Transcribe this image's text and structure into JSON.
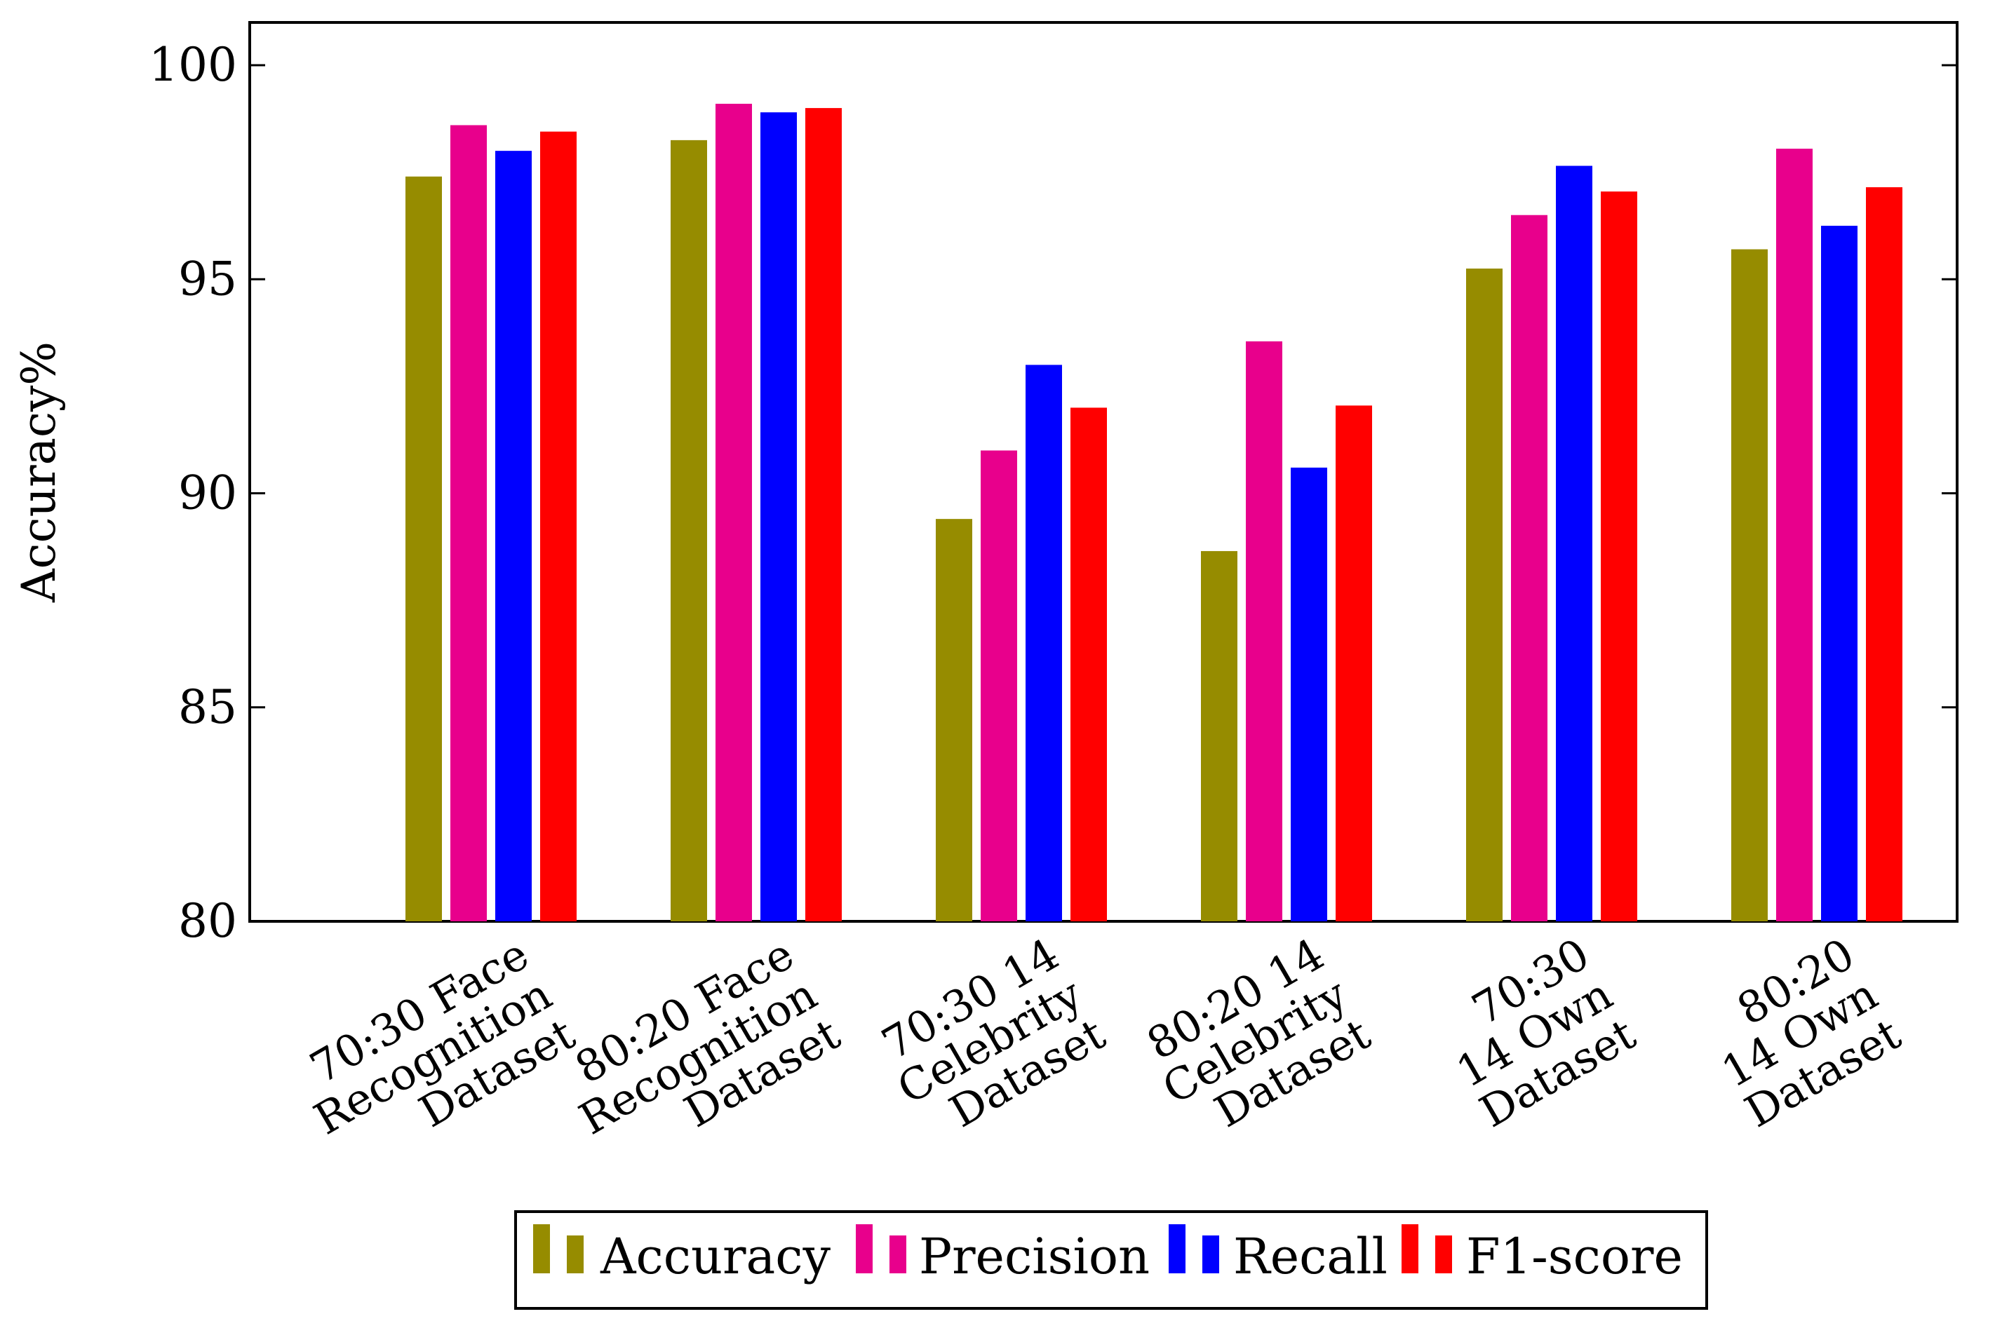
{
  "chart_data": {
    "type": "bar",
    "title": "",
    "xlabel": "",
    "ylabel": "Accuracy%",
    "ylim": [
      80,
      101
    ],
    "yticks": [
      80,
      85,
      90,
      95,
      100
    ],
    "categories": [
      [
        "70:30 Face",
        "Recognition",
        "Dataset"
      ],
      [
        "80:20 Face",
        "Recognition",
        "Dataset"
      ],
      [
        "70:30 14",
        "Celebrity",
        "Dataset"
      ],
      [
        "80:20 14",
        "Celebrity",
        "Dataset"
      ],
      [
        "70:30",
        "14 Own",
        "Dataset"
      ],
      [
        "80:20",
        "14 Own",
        "Dataset"
      ]
    ],
    "series": [
      {
        "name": "Accuracy",
        "color": "#968c00",
        "values": [
          97.4,
          98.25,
          89.4,
          88.65,
          95.25,
          95.7
        ]
      },
      {
        "name": "Precision",
        "color": "#e8008c",
        "values": [
          98.6,
          99.1,
          91.0,
          93.55,
          96.5,
          98.05
        ]
      },
      {
        "name": "Recall",
        "color": "#0000ff",
        "values": [
          98.0,
          98.9,
          93.0,
          90.6,
          97.65,
          96.25
        ]
      },
      {
        "name": "F1-score",
        "color": "#ff0000",
        "values": [
          98.45,
          99.0,
          92.0,
          92.05,
          97.05,
          97.15
        ]
      }
    ],
    "grid": false,
    "legend_position": "bottom"
  }
}
